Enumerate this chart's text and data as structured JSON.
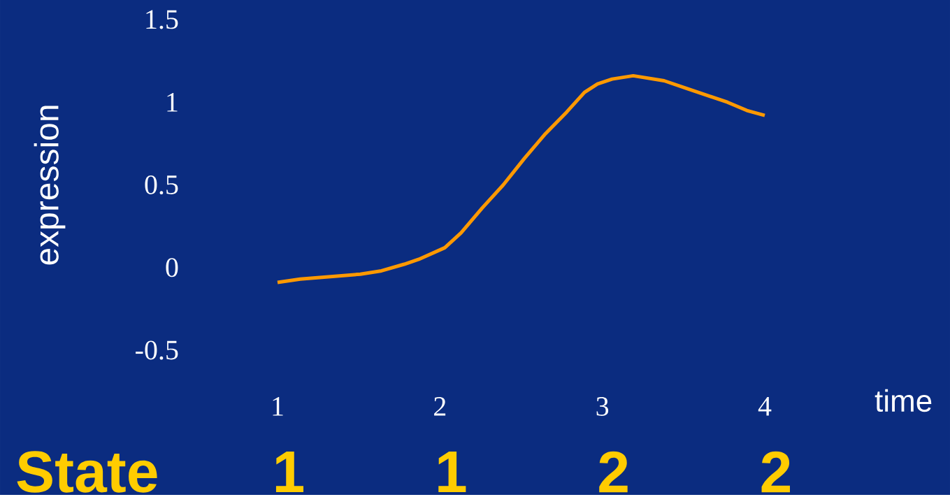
{
  "chart_data": {
    "type": "line",
    "xlabel": "time",
    "ylabel": "expression",
    "x": [
      1.0,
      1.14,
      1.51,
      1.64,
      1.78,
      1.87,
      2.03,
      2.13,
      2.26,
      2.39,
      2.52,
      2.65,
      2.78,
      2.89,
      2.97,
      3.06,
      3.19,
      3.38,
      3.53,
      3.77,
      3.89,
      4.0
    ],
    "series": [
      {
        "color": "#ff9900",
        "values": [
          -0.09,
          -0.07,
          -0.04,
          -0.02,
          0.02,
          0.05,
          0.12,
          0.21,
          0.36,
          0.5,
          0.66,
          0.81,
          0.94,
          1.06,
          1.11,
          1.14,
          1.16,
          1.13,
          1.08,
          1.0,
          0.95,
          0.92
        ]
      }
    ],
    "xlim": [
      1,
      4
    ],
    "ylim": [
      -0.5,
      1.5
    ],
    "xticks": [
      1,
      2,
      3,
      4
    ],
    "yticks": [
      -0.5,
      0,
      0.5,
      1,
      1.5
    ],
    "grid": false,
    "marker": "none",
    "line_style": "solid",
    "annotations": [
      "State",
      "1",
      "1",
      "2",
      "2"
    ]
  }
}
